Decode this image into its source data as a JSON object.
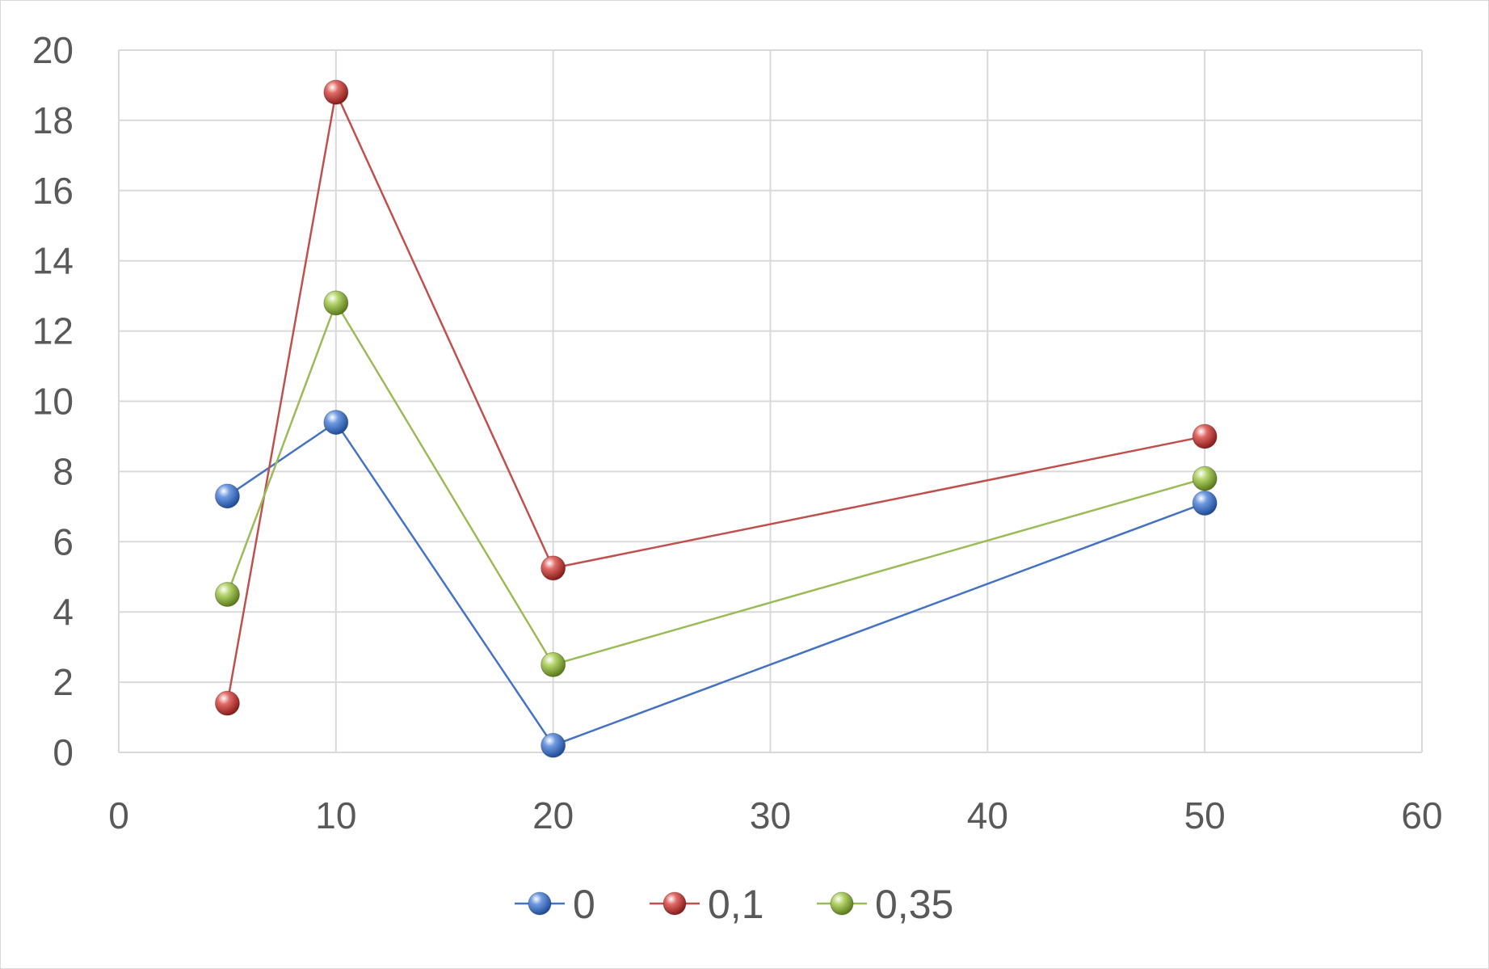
{
  "chart_data": {
    "type": "scatter",
    "title": "",
    "xlabel": "",
    "ylabel": "",
    "xlim": [
      0,
      60
    ],
    "ylim": [
      0,
      20
    ],
    "x_ticks": [
      0,
      10,
      20,
      30,
      40,
      50,
      60
    ],
    "y_ticks": [
      0,
      2,
      4,
      6,
      8,
      10,
      12,
      14,
      16,
      18,
      20
    ],
    "grid": true,
    "legend_position": "bottom",
    "x": [
      5,
      10,
      20,
      50
    ],
    "series": [
      {
        "name": "0",
        "color": "#4472c4",
        "values": [
          7.3,
          9.4,
          0.2,
          7.1
        ]
      },
      {
        "name": "0,1",
        "color": "#c0504d",
        "values": [
          1.4,
          18.8,
          5.25,
          9.0
        ]
      },
      {
        "name": "0,35",
        "color": "#9bbb59",
        "values": [
          4.5,
          12.8,
          2.5,
          7.8
        ]
      }
    ]
  }
}
